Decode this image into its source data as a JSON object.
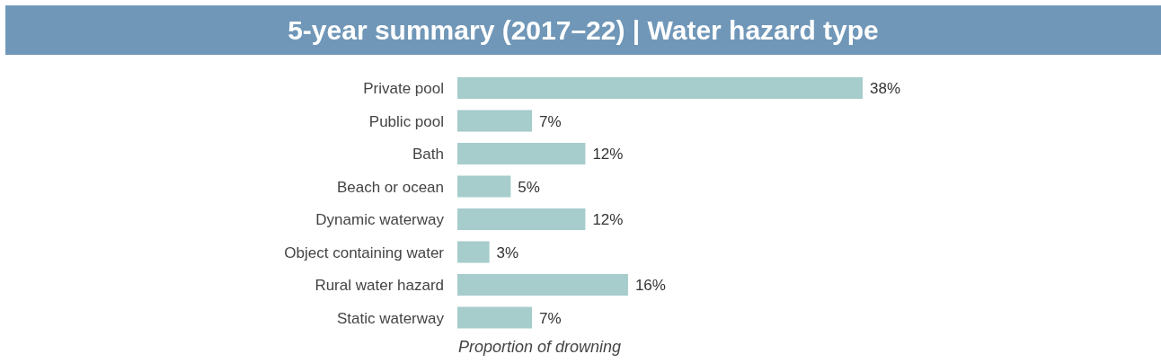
{
  "chart_data": {
    "type": "bar",
    "orientation": "horizontal",
    "title": "5-year summary (2017–22) | Water hazard type",
    "xlabel": "Proportion of drowning",
    "categories": [
      "Private pool",
      "Public pool",
      "Bath",
      "Beach or ocean",
      "Dynamic waterway",
      "Object containing water",
      "Rural water hazard",
      "Static waterway"
    ],
    "values": [
      38,
      7,
      12,
      5,
      12,
      3,
      16,
      7
    ],
    "value_labels": [
      "38%",
      "7%",
      "12%",
      "5%",
      "12%",
      "3%",
      "16%",
      "7%"
    ],
    "color": "#a6cccc",
    "grid": false,
    "legend": false
  }
}
